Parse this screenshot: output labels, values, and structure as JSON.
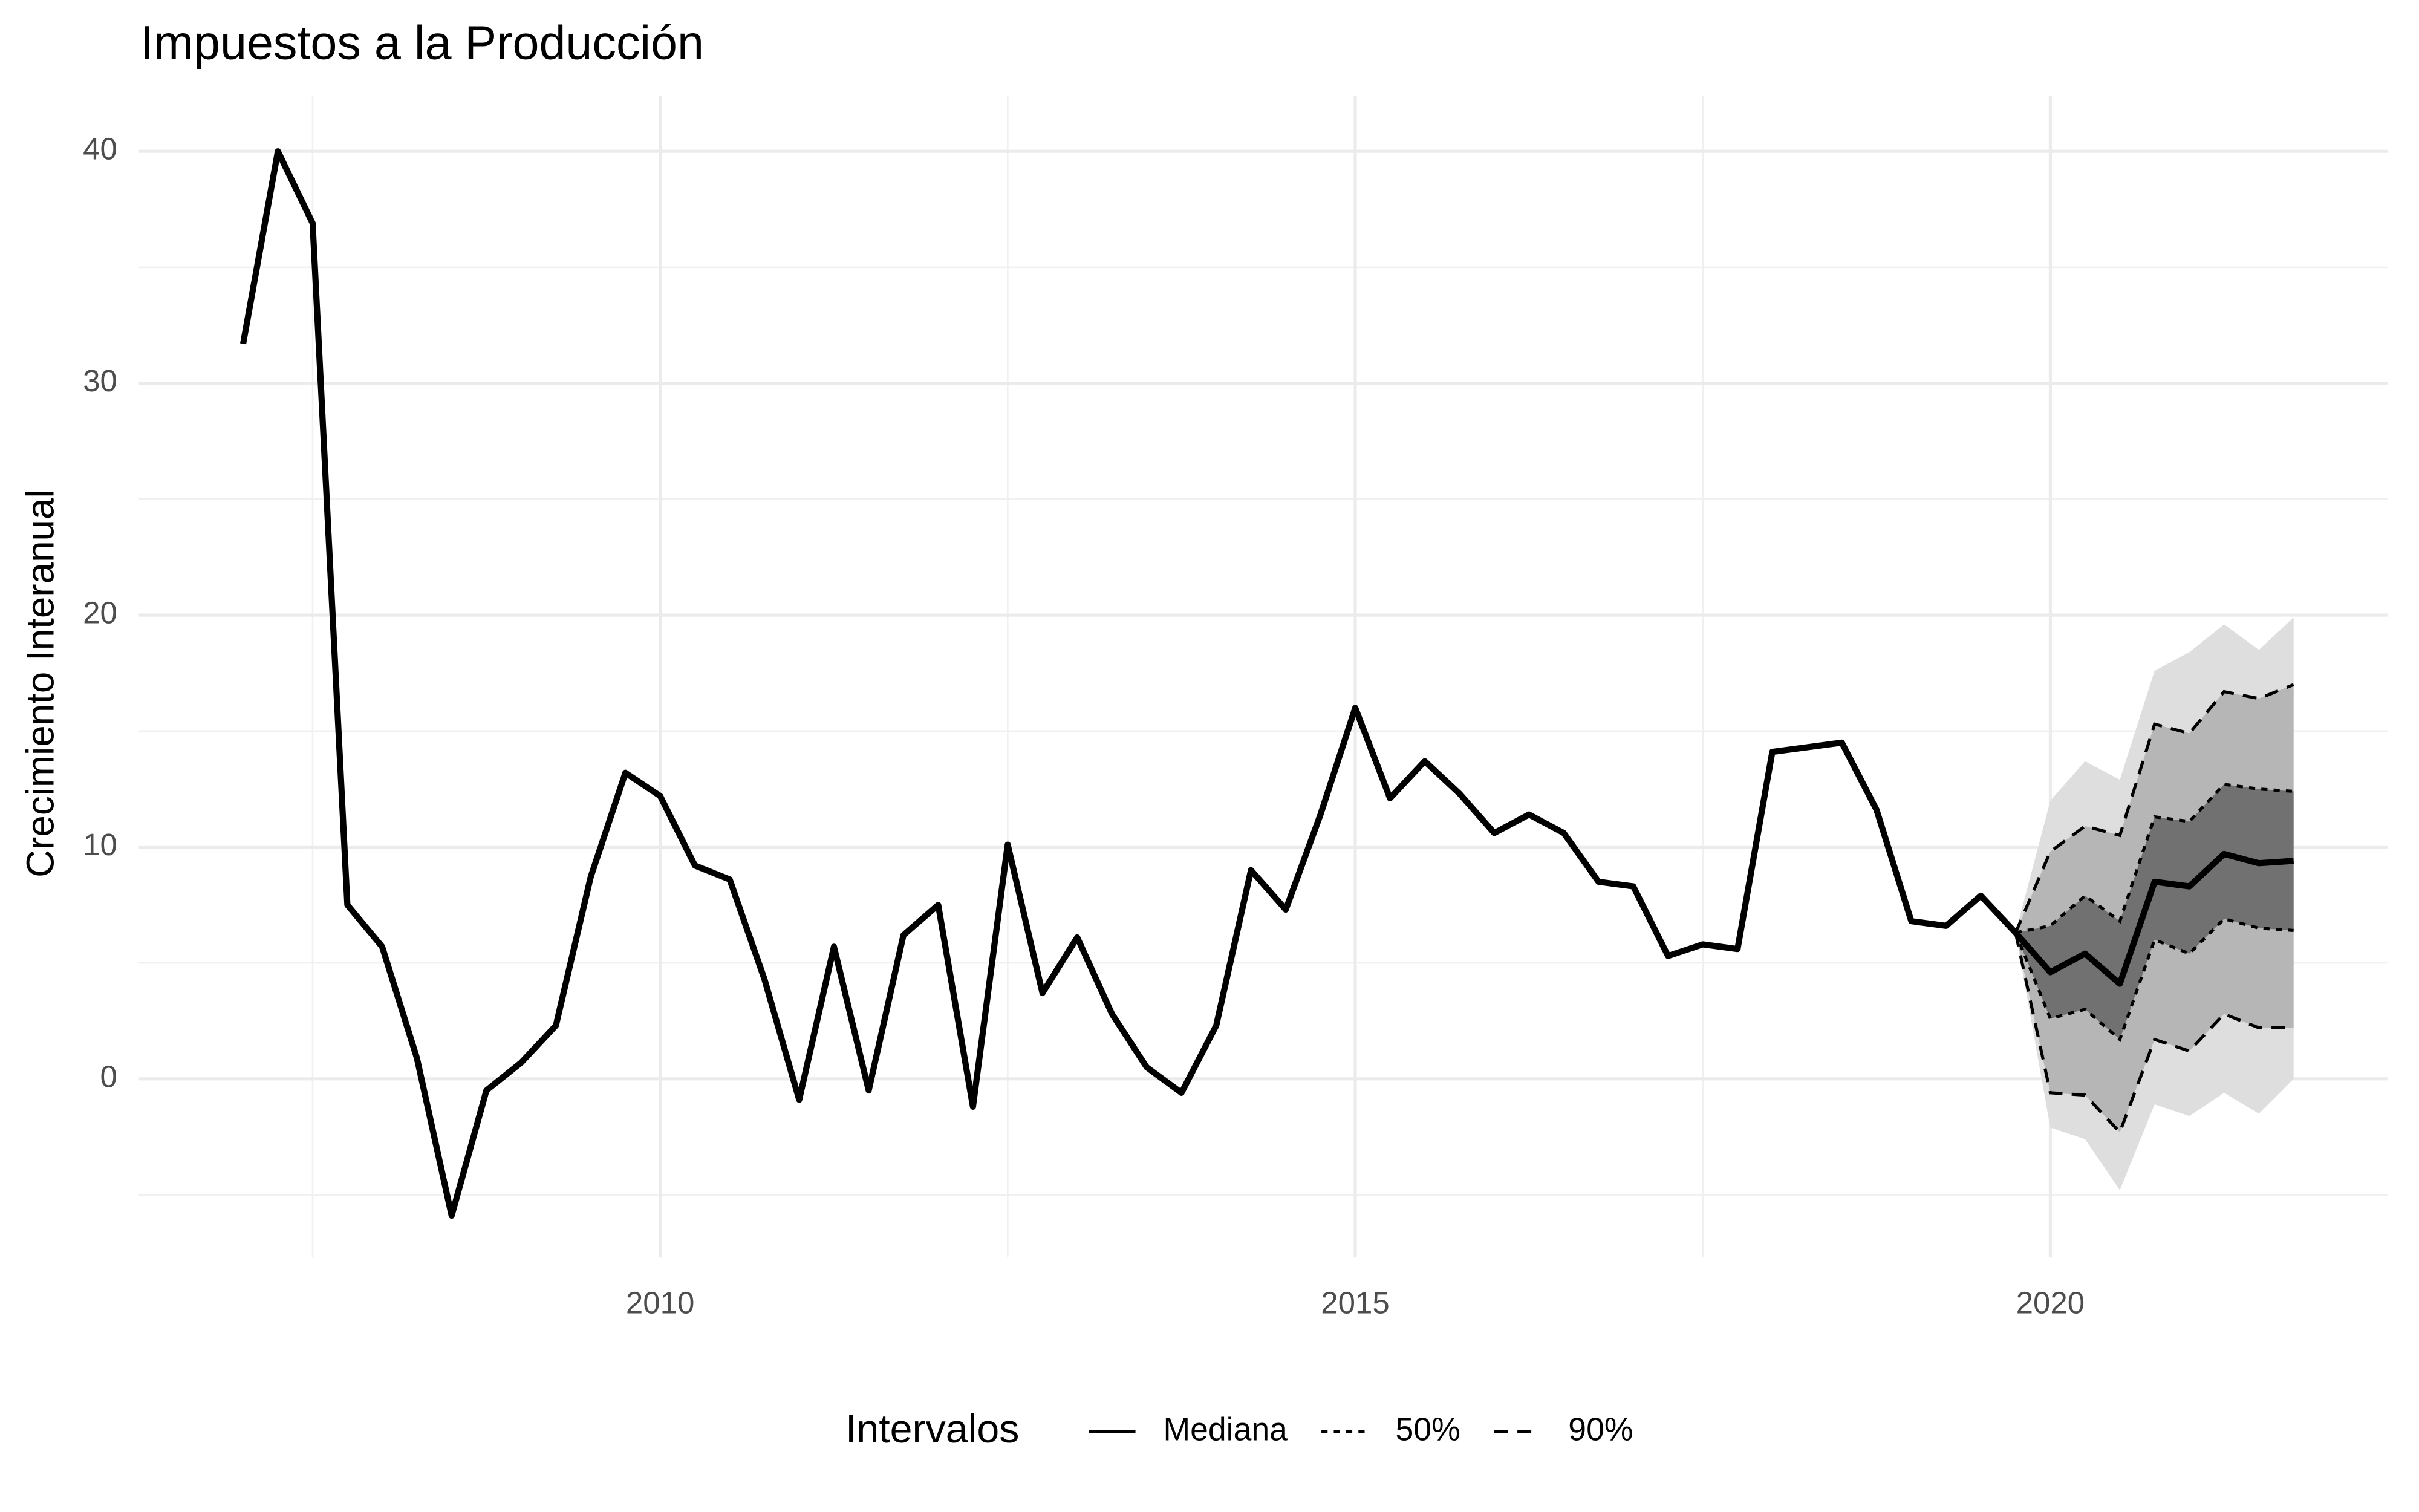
{
  "chart_data": {
    "type": "fan-line",
    "title": "Impuestos a la Producción",
    "y_label": "Crecimiento Interanual",
    "legend_title": "Intervalos",
    "x": [
      2007,
      2007.25,
      2007.5,
      2007.75,
      2008,
      2008.25,
      2008.5,
      2008.75,
      2009,
      2009.25,
      2009.5,
      2009.75,
      2010,
      2010.25,
      2010.5,
      2010.75,
      2011,
      2011.25,
      2011.5,
      2011.75,
      2012,
      2012.25,
      2012.5,
      2012.75,
      2013,
      2013.25,
      2013.5,
      2013.75,
      2014,
      2014.25,
      2014.5,
      2014.75,
      2015,
      2015.25,
      2015.5,
      2015.75,
      2016,
      2016.25,
      2016.5,
      2016.75,
      2017,
      2017.25,
      2017.5,
      2017.75,
      2018,
      2018.25,
      2018.5,
      2018.75,
      2019,
      2019.25,
      2019.5,
      2019.75,
      2020,
      2020.25,
      2020.5,
      2020.75,
      2021,
      2021.25,
      2021.5,
      2021.75
    ],
    "series": [
      {
        "name": "Mediana",
        "color": "#000000",
        "dash": "solid",
        "values": [
          31.7,
          40.0,
          36.9,
          7.5,
          5.7,
          0.9,
          -5.9,
          -0.5,
          0.7,
          2.3,
          8.7,
          13.2,
          12.2,
          9.2,
          8.6,
          4.3,
          -0.9,
          5.7,
          -0.5,
          6.2,
          7.5,
          -1.2,
          10.1,
          3.7,
          6.1,
          2.8,
          0.5,
          -0.6,
          2.3,
          9.0,
          7.3,
          11.4,
          16.0,
          12.1,
          13.7,
          12.3,
          10.6,
          11.4,
          10.6,
          8.5,
          8.3,
          5.3,
          5.8,
          5.6,
          14.1,
          14.3,
          14.5,
          11.6,
          6.8,
          6.6,
          7.9,
          6.3,
          4.6,
          5.4,
          4.1,
          8.5,
          8.3,
          9.7,
          9.3,
          9.4
        ]
      },
      {
        "name": "50%",
        "color": "#000000",
        "dash": "dotted",
        "fill": "#5a5a5a",
        "upper": [
          null,
          null,
          null,
          null,
          null,
          null,
          null,
          null,
          null,
          null,
          null,
          null,
          null,
          null,
          null,
          null,
          null,
          null,
          null,
          null,
          null,
          null,
          null,
          null,
          null,
          null,
          null,
          null,
          null,
          null,
          null,
          null,
          null,
          null,
          null,
          null,
          null,
          null,
          null,
          null,
          null,
          null,
          null,
          null,
          null,
          null,
          null,
          null,
          null,
          null,
          null,
          6.3,
          6.6,
          7.9,
          6.8,
          11.3,
          11.1,
          12.7,
          12.5,
          12.4
        ],
        "lower": [
          null,
          null,
          null,
          null,
          null,
          null,
          null,
          null,
          null,
          null,
          null,
          null,
          null,
          null,
          null,
          null,
          null,
          null,
          null,
          null,
          null,
          null,
          null,
          null,
          null,
          null,
          null,
          null,
          null,
          null,
          null,
          null,
          null,
          null,
          null,
          null,
          null,
          null,
          null,
          null,
          null,
          null,
          null,
          null,
          null,
          null,
          null,
          null,
          null,
          null,
          null,
          6.3,
          2.6,
          3.0,
          1.7,
          6.0,
          5.4,
          6.9,
          6.5,
          6.4
        ]
      },
      {
        "name": "90%",
        "color": "#000000",
        "dash": "dashed",
        "fill": "#a8a8a8",
        "upper": [
          null,
          null,
          null,
          null,
          null,
          null,
          null,
          null,
          null,
          null,
          null,
          null,
          null,
          null,
          null,
          null,
          null,
          null,
          null,
          null,
          null,
          null,
          null,
          null,
          null,
          null,
          null,
          null,
          null,
          null,
          null,
          null,
          null,
          null,
          null,
          null,
          null,
          null,
          null,
          null,
          null,
          null,
          null,
          null,
          null,
          null,
          null,
          null,
          null,
          null,
          null,
          6.3,
          9.8,
          10.9,
          10.5,
          15.3,
          14.9,
          16.7,
          16.4,
          17.0
        ],
        "lower": [
          null,
          null,
          null,
          null,
          null,
          null,
          null,
          null,
          null,
          null,
          null,
          null,
          null,
          null,
          null,
          null,
          null,
          null,
          null,
          null,
          null,
          null,
          null,
          null,
          null,
          null,
          null,
          null,
          null,
          null,
          null,
          null,
          null,
          null,
          null,
          null,
          null,
          null,
          null,
          null,
          null,
          null,
          null,
          null,
          null,
          null,
          null,
          null,
          null,
          null,
          null,
          6.3,
          -0.6,
          -0.7,
          -2.3,
          1.7,
          1.2,
          2.8,
          2.2,
          2.2
        ]
      }
    ],
    "shade": {
      "color": "#dedede",
      "upper": [
        null,
        null,
        null,
        null,
        null,
        null,
        null,
        null,
        null,
        null,
        null,
        null,
        null,
        null,
        null,
        null,
        null,
        null,
        null,
        null,
        null,
        null,
        null,
        null,
        null,
        null,
        null,
        null,
        null,
        null,
        null,
        null,
        null,
        null,
        null,
        null,
        null,
        null,
        null,
        null,
        null,
        null,
        null,
        null,
        null,
        null,
        null,
        null,
        null,
        null,
        null,
        6.3,
        12.0,
        13.7,
        12.9,
        17.6,
        18.4,
        19.6,
        18.5,
        19.9
      ],
      "lower": [
        null,
        null,
        null,
        null,
        null,
        null,
        null,
        null,
        null,
        null,
        null,
        null,
        null,
        null,
        null,
        null,
        null,
        null,
        null,
        null,
        null,
        null,
        null,
        null,
        null,
        null,
        null,
        null,
        null,
        null,
        null,
        null,
        null,
        null,
        null,
        null,
        null,
        null,
        null,
        null,
        null,
        null,
        null,
        null,
        null,
        null,
        null,
        null,
        null,
        null,
        null,
        6.3,
        -2.1,
        -2.6,
        -4.8,
        -1.1,
        -1.6,
        -0.6,
        -1.5,
        0.0
      ]
    },
    "xlim": [
      2006.25,
      2022.43
    ],
    "xticks": [
      2010,
      2015,
      2020
    ],
    "xminor": [
      2007.5,
      2012.5,
      2017.5
    ],
    "ylim": [
      -7.7,
      42.4
    ],
    "yticks": [
      0,
      10,
      20,
      30,
      40
    ],
    "yminor": [
      -5,
      5,
      15,
      25,
      35
    ],
    "grid": true
  }
}
